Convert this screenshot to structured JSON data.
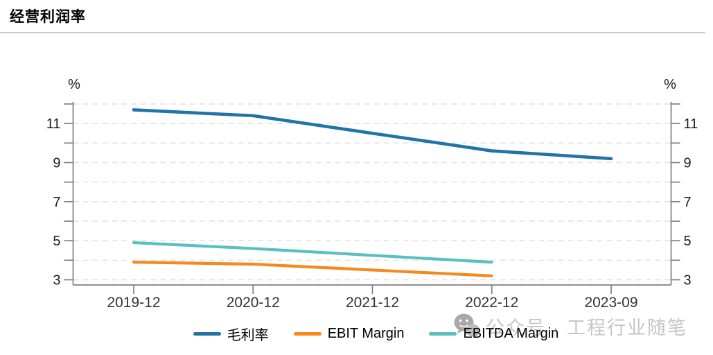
{
  "title": "经营利润率",
  "watermark": {
    "icon": "wechat-icon",
    "text": "公众号 · 工程行业随笔"
  },
  "chart_data": {
    "type": "line",
    "title": "经营利润率",
    "categories": [
      "2019-12",
      "2020-12",
      "2021-12",
      "2022-12",
      "2023-09"
    ],
    "series": [
      {
        "name": "毛利率",
        "color": "#2273A6",
        "values": [
          11.7,
          11.4,
          10.5,
          9.6,
          9.2
        ]
      },
      {
        "name": "EBIT Margin",
        "color": "#F6891E",
        "values": [
          3.9,
          3.8,
          3.5,
          3.2,
          null
        ]
      },
      {
        "name": "EBITDA Margin",
        "color": "#5BBFC2",
        "values": [
          4.9,
          4.6,
          4.25,
          3.9,
          null
        ]
      }
    ],
    "ylabel": "%",
    "ylabel_right": "%",
    "ylim": [
      2.7,
      12.2
    ],
    "yticks_labeled": [
      3,
      5,
      7,
      9,
      11
    ],
    "yticks_minor": [
      4,
      6,
      8,
      10,
      12
    ],
    "grid": "horizontal-dashed",
    "legend_position": "bottom"
  }
}
